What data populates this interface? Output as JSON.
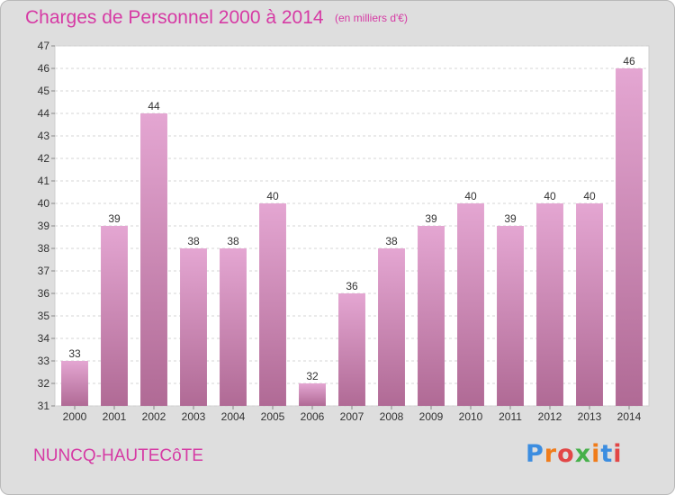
{
  "chart_data": {
    "type": "bar",
    "title": "Charges de Personnel 2000 à 2014",
    "subtitle": "(en milliers d'€)",
    "categories": [
      "2000",
      "2001",
      "2002",
      "2003",
      "2004",
      "2005",
      "2006",
      "2007",
      "2008",
      "2009",
      "2010",
      "2011",
      "2012",
      "2013",
      "2014"
    ],
    "values": [
      33,
      39,
      44,
      38,
      38,
      40,
      32,
      36,
      38,
      39,
      40,
      39,
      40,
      40,
      46
    ],
    "ylim": [
      31,
      47
    ],
    "yticks": [
      31,
      32,
      33,
      34,
      35,
      36,
      37,
      38,
      39,
      40,
      41,
      42,
      43,
      44,
      45,
      46,
      47
    ],
    "xlabel": "",
    "ylabel": "",
    "grid": true,
    "bar_color_top": "#e4a6d2",
    "bar_color_bottom": "#b06a95"
  },
  "footer": {
    "commune": "NUNCQ-HAUTECôTE",
    "logo": "Proxiti"
  },
  "colors": {
    "accent": "#d63aa4",
    "background": "#dedede",
    "plot_background": "#ffffff"
  }
}
